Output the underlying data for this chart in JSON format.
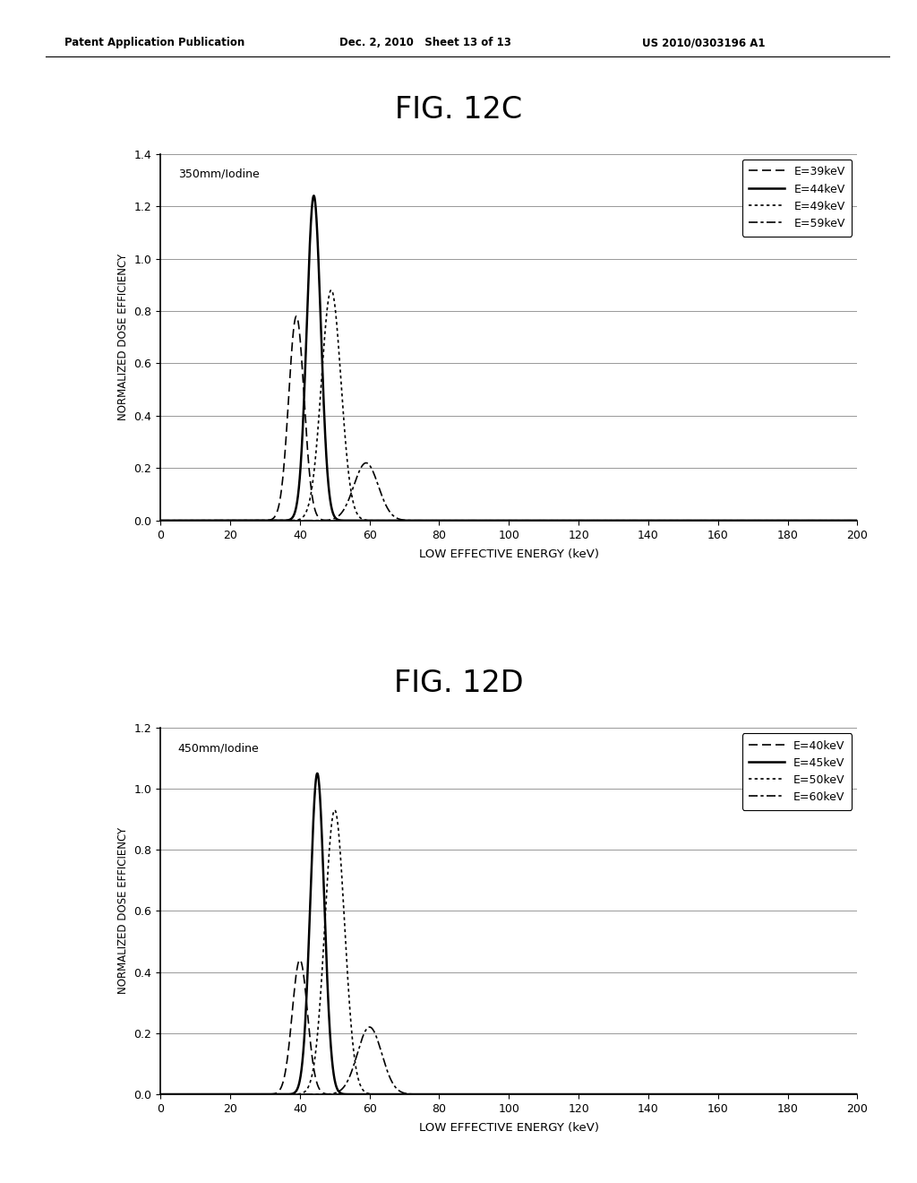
{
  "header_left": "Patent Application Publication",
  "header_center": "Dec. 2, 2010   Sheet 13 of 13",
  "header_right": "US 2010/0303196 A1",
  "fig_c_title": "FIG. 12C",
  "fig_d_title": "FIG. 12D",
  "xlabel": "LOW EFFECTIVE ENERGY (keV)",
  "ylabel": "NORMALIZED DOSE EFFICIENCY",
  "fig_c_annotation": "350mm/Iodine",
  "fig_d_annotation": "450mm/Iodine",
  "fig_c_ylim": [
    0.0,
    1.4
  ],
  "fig_d_ylim": [
    0.0,
    1.2
  ],
  "xlim": [
    0,
    200
  ],
  "xticks": [
    0,
    20,
    40,
    60,
    80,
    100,
    120,
    140,
    160,
    180,
    200
  ],
  "fig_c_yticks": [
    0.0,
    0.2,
    0.4,
    0.6,
    0.8,
    1.0,
    1.2,
    1.4
  ],
  "fig_d_yticks": [
    0.0,
    0.2,
    0.4,
    0.6,
    0.8,
    1.0,
    1.2
  ],
  "background_color": "#ffffff",
  "fig_c_curves": [
    {
      "label": "E=39keV",
      "style": "dashed",
      "peak": 39,
      "sigma": 2.2,
      "amplitude": 0.78,
      "color": "#000000"
    },
    {
      "label": "E=44keV",
      "style": "solid",
      "peak": 44,
      "sigma": 2.0,
      "amplitude": 1.24,
      "color": "#000000"
    },
    {
      "label": "E=49keV",
      "style": "dotted",
      "peak": 49,
      "sigma": 2.8,
      "amplitude": 0.88,
      "color": "#000000"
    },
    {
      "label": "E=59keV",
      "style": "dashdot",
      "peak": 59,
      "sigma": 3.5,
      "amplitude": 0.22,
      "color": "#000000"
    }
  ],
  "fig_d_curves": [
    {
      "label": "E=40keV",
      "style": "dashed",
      "peak": 40,
      "sigma": 2.2,
      "amplitude": 0.44,
      "color": "#000000"
    },
    {
      "label": "E=45keV",
      "style": "solid",
      "peak": 45,
      "sigma": 2.0,
      "amplitude": 1.05,
      "color": "#000000"
    },
    {
      "label": "E=50keV",
      "style": "dotted",
      "peak": 50,
      "sigma": 2.8,
      "amplitude": 0.93,
      "color": "#000000"
    },
    {
      "label": "E=60keV",
      "style": "dashdot",
      "peak": 60,
      "sigma": 3.5,
      "amplitude": 0.22,
      "color": "#000000"
    }
  ]
}
